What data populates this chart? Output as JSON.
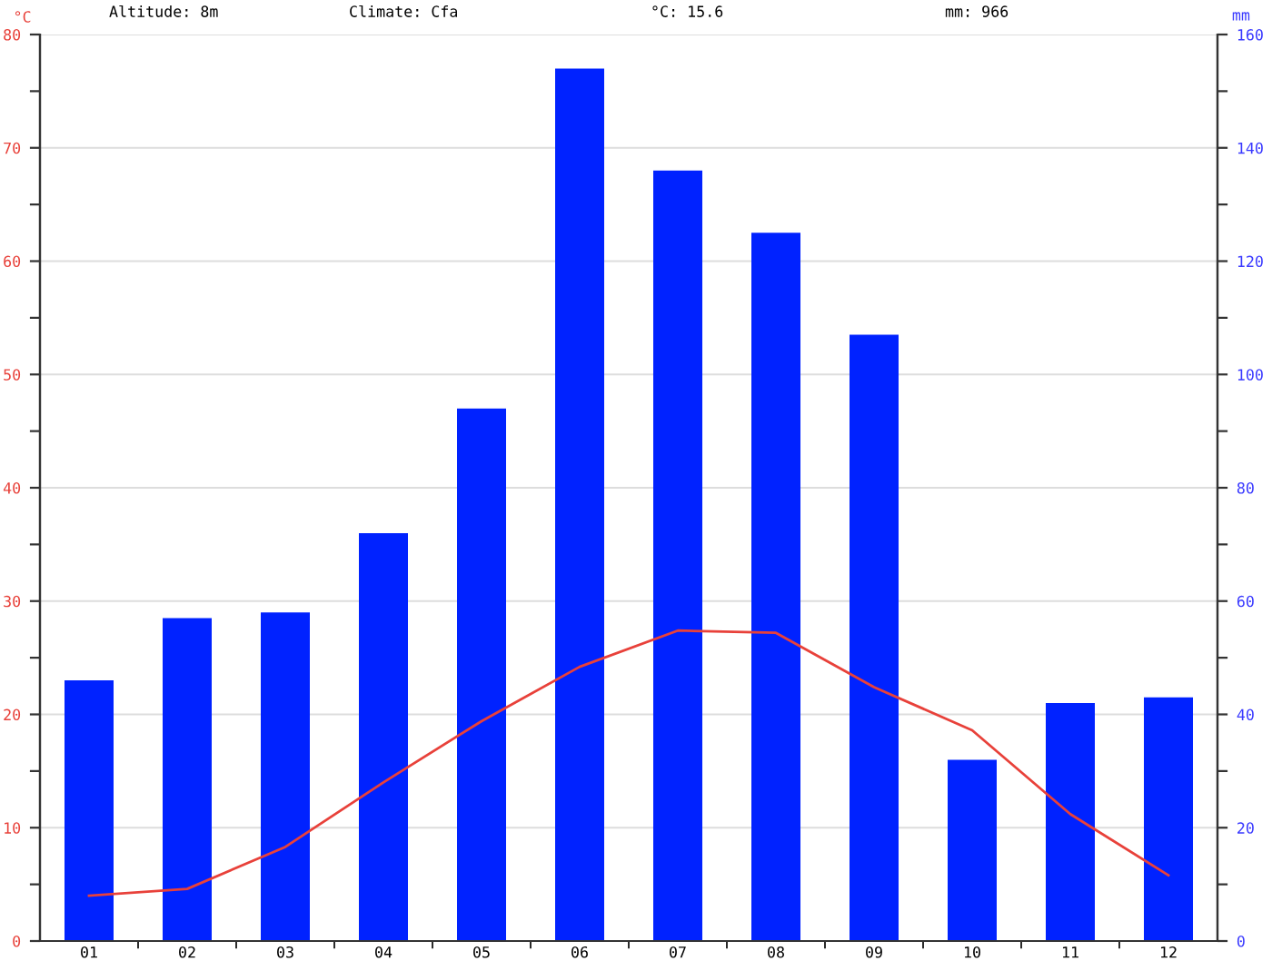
{
  "chart_data": {
    "type": "bar",
    "categories": [
      "01",
      "02",
      "03",
      "04",
      "05",
      "06",
      "07",
      "08",
      "09",
      "10",
      "11",
      "12"
    ],
    "ylabel": "°C",
    "y2label": "mm",
    "annotations": [
      "Altitude: 8m",
      "Climate: Cfa",
      "°C: 15.6",
      "mm: 966"
    ],
    "series": [
      {
        "axis": "y2",
        "color": "#0022ff",
        "values": [
          46,
          57,
          58,
          72,
          94,
          154,
          136,
          125,
          107,
          32,
          42,
          43
        ]
      },
      {
        "type": "line",
        "axis": "y",
        "color": "#e8413a",
        "values": [
          4.0,
          4.6,
          8.3,
          14.0,
          19.4,
          24.2,
          27.4,
          27.2,
          22.4,
          18.6,
          11.2,
          5.8
        ]
      }
    ],
    "ylim": [
      0,
      80
    ],
    "yticks": [
      0,
      {
        "value": 5,
        "label": null
      },
      10,
      {
        "value": 15,
        "label": null
      },
      20,
      {
        "value": 25,
        "label": null
      },
      30,
      {
        "value": 35,
        "label": null
      },
      40,
      {
        "value": 45,
        "label": null
      },
      50,
      {
        "value": 55,
        "label": null
      },
      60,
      {
        "value": 65,
        "label": null
      },
      70,
      {
        "value": 75,
        "label": null
      },
      80
    ],
    "y2lim": [
      0,
      160
    ],
    "y2ticks": [
      0,
      {
        "value": 10,
        "label": null
      },
      20,
      {
        "value": 30,
        "label": null
      },
      40,
      {
        "value": 50,
        "label": null
      },
      60,
      {
        "value": 70,
        "label": null
      },
      80,
      {
        "value": 90,
        "label": null
      },
      100,
      {
        "value": 110,
        "label": null
      },
      120,
      {
        "value": 130,
        "label": null
      },
      140,
      {
        "value": 150,
        "label": null
      },
      160
    ],
    "grid": "y",
    "marker": "none",
    "line_style": "solid"
  }
}
